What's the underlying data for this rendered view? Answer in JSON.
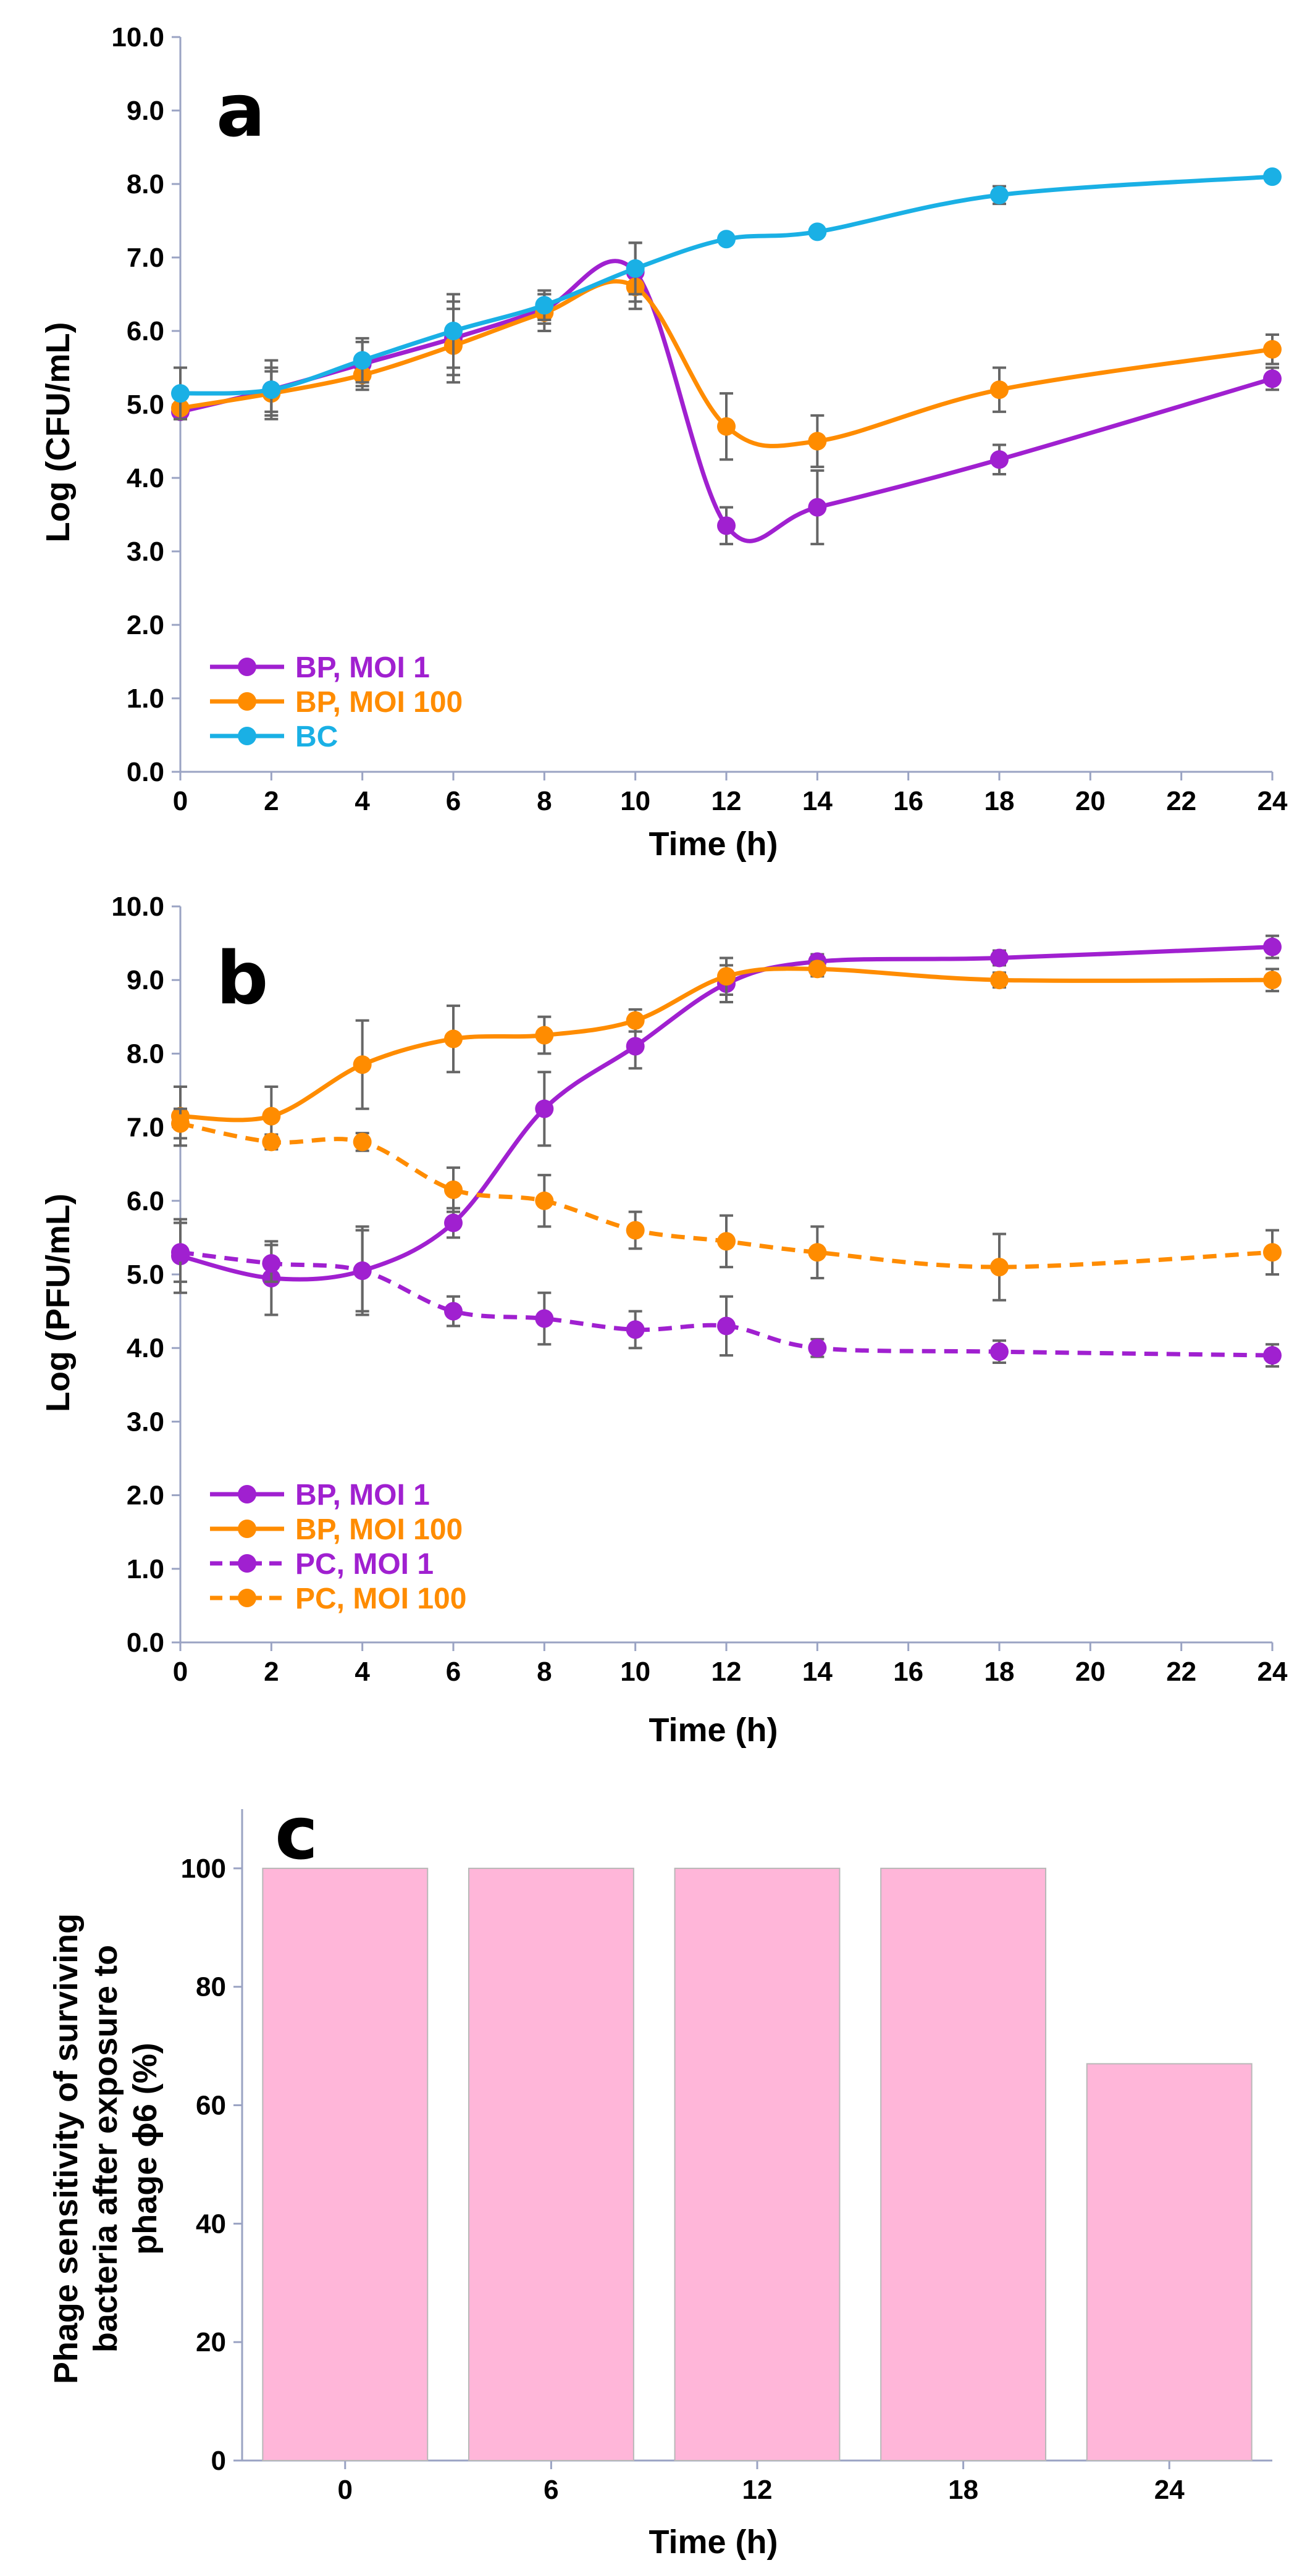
{
  "chart_data": [
    {
      "panel": "a",
      "type": "line",
      "xlabel": "Time (h)",
      "ylabel": "Log (CFU/mL)",
      "xlim": [
        0,
        24
      ],
      "ylim": [
        0,
        10
      ],
      "xticks": [
        "0",
        "2",
        "4",
        "6",
        "8",
        "10",
        "12",
        "14",
        "16",
        "18",
        "20",
        "22",
        "24"
      ],
      "yticks": [
        "0.0",
        "1.0",
        "2.0",
        "3.0",
        "4.0",
        "5.0",
        "6.0",
        "7.0",
        "8.0",
        "9.0",
        "10.0"
      ],
      "legend_position": "bottom-left",
      "series": [
        {
          "name": "BP, MOI 1",
          "color": "#a020d0",
          "dashed": false,
          "x": [
            0,
            2,
            4,
            6,
            8,
            10,
            12,
            14,
            18,
            24
          ],
          "y": [
            4.9,
            5.2,
            5.55,
            5.9,
            6.3,
            6.8,
            3.35,
            3.6,
            4.25,
            5.35
          ],
          "err": [
            0.1,
            0.3,
            0.3,
            0.5,
            0.2,
            0.4,
            0.25,
            0.5,
            0.2,
            0.15
          ]
        },
        {
          "name": "BP, MOI 100",
          "color": "#ff8c00",
          "dashed": false,
          "x": [
            0,
            2,
            4,
            6,
            8,
            10,
            12,
            14,
            18,
            24
          ],
          "y": [
            4.95,
            5.15,
            5.4,
            5.8,
            6.25,
            6.6,
            4.7,
            4.5,
            5.2,
            5.75
          ],
          "err": [
            0.15,
            0.3,
            0.2,
            0.5,
            0.25,
            0.3,
            0.45,
            0.35,
            0.3,
            0.2
          ]
        },
        {
          "name": "BC",
          "color": "#1ab0e5",
          "dashed": false,
          "x": [
            0,
            2,
            4,
            6,
            8,
            10,
            12,
            14,
            18,
            24
          ],
          "y": [
            5.15,
            5.2,
            5.6,
            6.0,
            6.35,
            6.85,
            7.25,
            7.35,
            7.85,
            8.1
          ],
          "err": [
            0.35,
            0.4,
            0.3,
            0.5,
            0.2,
            0.35,
            0.05,
            0.05,
            0.12,
            0.05
          ]
        }
      ]
    },
    {
      "panel": "b",
      "type": "line",
      "xlabel": "Time (h)",
      "ylabel": "Log (PFU/mL)",
      "xlim": [
        0,
        24
      ],
      "ylim": [
        0,
        10
      ],
      "xticks": [
        "0",
        "2",
        "4",
        "6",
        "8",
        "10",
        "12",
        "14",
        "16",
        "18",
        "20",
        "22",
        "24"
      ],
      "yticks": [
        "0.0",
        "1.0",
        "2.0",
        "3.0",
        "4.0",
        "5.0",
        "6.0",
        "7.0",
        "8.0",
        "9.0",
        "10.0"
      ],
      "legend_position": "bottom-left",
      "series": [
        {
          "name": "BP, MOI 1",
          "color": "#a020d0",
          "dashed": false,
          "x": [
            0,
            2,
            4,
            6,
            8,
            10,
            12,
            14,
            18,
            24
          ],
          "y": [
            5.25,
            4.95,
            5.05,
            5.7,
            7.25,
            8.1,
            8.95,
            9.25,
            9.3,
            9.45
          ],
          "err": [
            0.5,
            0.5,
            0.6,
            0.2,
            0.5,
            0.3,
            0.25,
            0.1,
            0.1,
            0.15
          ]
        },
        {
          "name": "BP, MOI 100",
          "color": "#ff8c00",
          "dashed": false,
          "x": [
            0,
            2,
            4,
            6,
            8,
            10,
            12,
            14,
            18,
            24
          ],
          "y": [
            7.15,
            7.15,
            7.85,
            8.2,
            8.25,
            8.45,
            9.05,
            9.15,
            9.0,
            9.0
          ],
          "err": [
            0.4,
            0.4,
            0.6,
            0.45,
            0.25,
            0.15,
            0.25,
            0.1,
            0.1,
            0.15
          ]
        },
        {
          "name": "PC, MOI 1",
          "color": "#a020d0",
          "dashed": true,
          "x": [
            0,
            2,
            4,
            6,
            8,
            10,
            12,
            14,
            18,
            24
          ],
          "y": [
            5.3,
            5.15,
            5.05,
            4.5,
            4.4,
            4.25,
            4.3,
            4.0,
            3.95,
            3.9
          ],
          "err": [
            0.4,
            0.25,
            0.55,
            0.2,
            0.35,
            0.25,
            0.4,
            0.12,
            0.15,
            0.15
          ]
        },
        {
          "name": "PC, MOI 100",
          "color": "#ff8c00",
          "dashed": true,
          "x": [
            0,
            2,
            4,
            6,
            8,
            10,
            12,
            14,
            18,
            24
          ],
          "y": [
            7.05,
            6.8,
            6.8,
            6.15,
            6.0,
            5.6,
            5.45,
            5.3,
            5.1,
            5.3
          ],
          "err": [
            0.2,
            0.1,
            0.12,
            0.3,
            0.35,
            0.25,
            0.35,
            0.35,
            0.45,
            0.3
          ]
        }
      ]
    },
    {
      "panel": "c",
      "type": "bar",
      "xlabel": "Time (h)",
      "ylabel_lines": [
        "Phage sensitivity of surviving",
        "bacteria after exposure to",
        "phage ϕ6 (%)"
      ],
      "categories": [
        "0",
        "6",
        "12",
        "18",
        "24"
      ],
      "values": [
        100,
        100,
        100,
        100,
        67
      ],
      "ylim": [
        0,
        110
      ],
      "yticks": [
        "0",
        "20",
        "40",
        "60",
        "80",
        "100"
      ],
      "bar_color": "#ffb6d9"
    }
  ]
}
